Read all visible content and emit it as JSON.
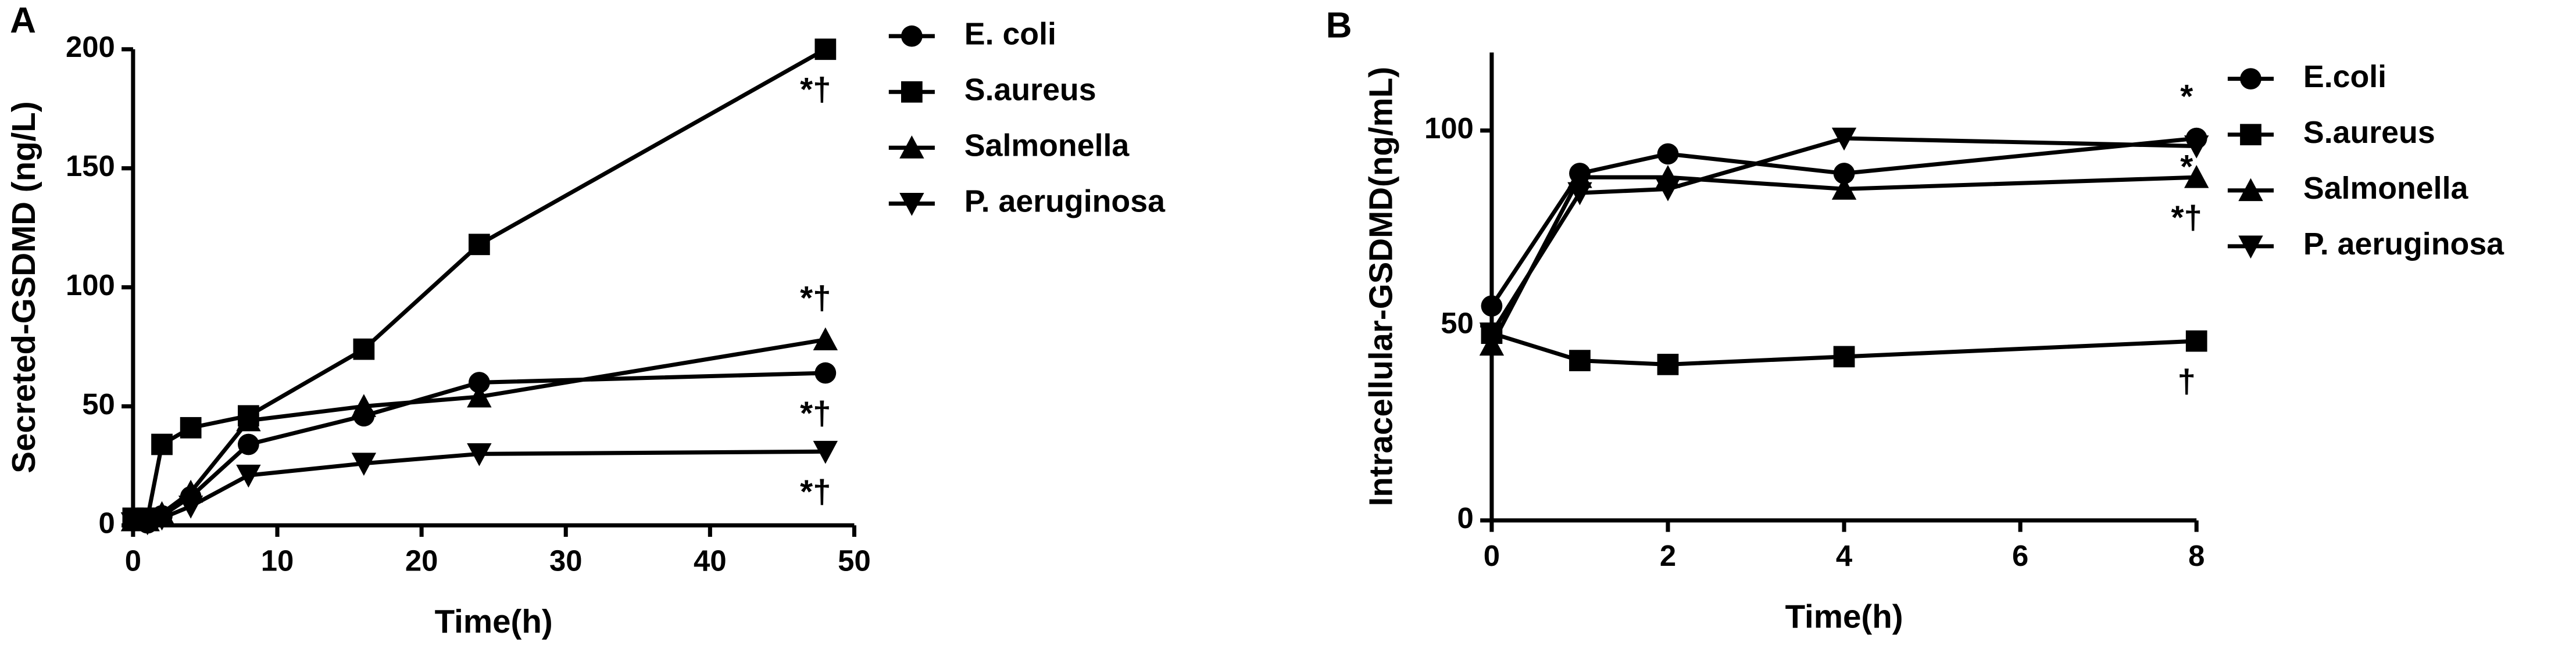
{
  "chart_data": [
    {
      "type": "line",
      "panel_label": "A",
      "xlabel": "Time(h)",
      "ylabel": "Secreted-GSDMD (ng/L)",
      "x": [
        0,
        1,
        2,
        4,
        8,
        16,
        24,
        48
      ],
      "xlim": [
        0,
        50
      ],
      "xticks": [
        0,
        10,
        20,
        30,
        40,
        50
      ],
      "ylim": [
        0,
        200
      ],
      "yticks": [
        0,
        50,
        100,
        150,
        200
      ],
      "series": [
        {
          "name": "E. coli",
          "color": "#000000",
          "marker": "circle",
          "values": [
            2,
            1,
            4,
            12,
            34,
            46,
            60,
            64
          ],
          "annotation": "*†",
          "annotation_side": "below"
        },
        {
          "name": "S.aureus",
          "color": "#000000",
          "marker": "square",
          "values": [
            3,
            3,
            34,
            41,
            46,
            74,
            118,
            200
          ],
          "annotation": "*†",
          "annotation_side": "below"
        },
        {
          "name": "Salmonella",
          "color": "#000000",
          "marker": "triangle",
          "values": [
            2,
            2,
            5,
            14,
            44,
            50,
            54,
            78
          ],
          "annotation": "*†",
          "annotation_side": "above"
        },
        {
          "name": "P. aeruginosa",
          "color": "#000000",
          "marker": "triangle-down",
          "values": [
            1,
            1,
            3,
            8,
            21,
            26,
            30,
            31
          ],
          "annotation": "*†",
          "annotation_side": "below"
        }
      ]
    },
    {
      "type": "line",
      "panel_label": "B",
      "xlabel": "Time(h)",
      "ylabel": "Intracellular-GSDMD(ng/mL)",
      "x": [
        0,
        1,
        2,
        4,
        8
      ],
      "xlim": [
        0,
        8
      ],
      "xticks": [
        0,
        2,
        4,
        6,
        8
      ],
      "ylim": [
        0,
        120
      ],
      "yticks": [
        0,
        50,
        100
      ],
      "series": [
        {
          "name": "E.coli",
          "color": "#000000",
          "marker": "circle",
          "values": [
            55,
            89,
            94,
            89,
            98
          ],
          "annotation": "*",
          "annotation_side": "above"
        },
        {
          "name": "S.aureus",
          "color": "#000000",
          "marker": "square",
          "values": [
            48,
            41,
            40,
            42,
            46
          ],
          "annotation": "†",
          "annotation_side": "below"
        },
        {
          "name": "Salmonella",
          "color": "#000000",
          "marker": "triangle",
          "values": [
            45,
            88,
            88,
            85,
            88
          ],
          "annotation": "*†",
          "annotation_side": "below"
        },
        {
          "name": "P. aeruginosa",
          "color": "#000000",
          "marker": "triangle-down",
          "values": [
            48,
            84,
            85,
            98,
            96
          ],
          "annotation": "*",
          "annotation_side": "below-near"
        }
      ]
    }
  ]
}
